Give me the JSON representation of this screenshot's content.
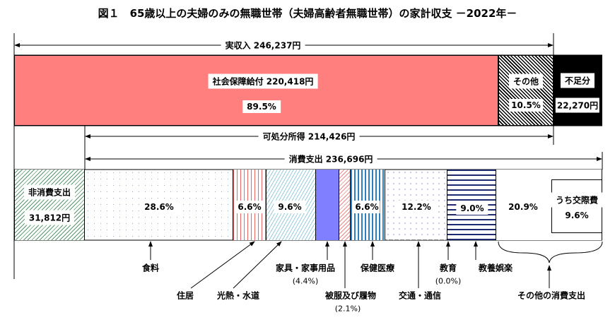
{
  "title": "図１　65歳以上の夫婦のみの無職世帯（夫婦高齢者無職世帯）の家計収支 －2022年－",
  "income": {
    "total_label": "実収入 246,237円",
    "social_security": {
      "label": "社会保障給付 220,418円",
      "pct": "89.5%",
      "share": 89.5,
      "color": "#ff7f7f"
    },
    "other": {
      "label": "その他",
      "pct": "10.5%",
      "share": 10.5
    },
    "shortfall": {
      "label": "不足分",
      "amount": "22,270円",
      "color": "#000000"
    }
  },
  "disposable_label": "可処分所得 214,426円",
  "consumption_label": "消費支出 236,696円",
  "non_consumption": {
    "label": "非消費支出",
    "amount": "31,812円"
  },
  "categories": [
    {
      "name": "食料",
      "pct": "28.6%",
      "value": 28.6
    },
    {
      "name": "住居",
      "pct": "6.6%",
      "value": 6.6
    },
    {
      "name": "光熱・水道",
      "pct": "9.6%",
      "value": 9.6
    },
    {
      "name": "家具・家事用品",
      "pct": "(4.4%)",
      "value": 4.4
    },
    {
      "name": "被服及び履物",
      "pct": "(2.1%)",
      "value": 2.1
    },
    {
      "name": "保健医療",
      "pct": "6.6%",
      "value": 6.6
    },
    {
      "name": "交通・通信",
      "pct": "12.2%",
      "value": 12.2
    },
    {
      "name": "教育",
      "pct": "(0.0%)",
      "value": 0.0
    },
    {
      "name": "教養娯楽",
      "pct": "9.0%",
      "value": 9.0
    },
    {
      "name": "その他の消費支出",
      "pct": "20.9%",
      "value": 20.9
    }
  ],
  "social_expenses": {
    "label": "うち交際費",
    "pct": "9.6%"
  }
}
